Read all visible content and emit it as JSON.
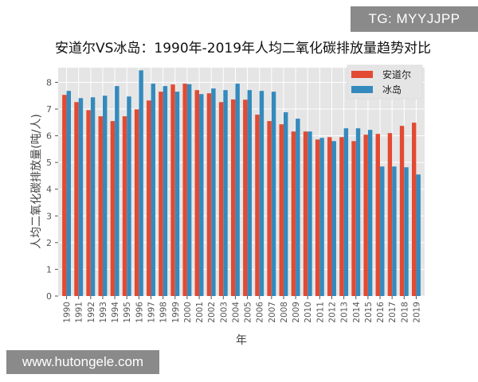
{
  "watermarks": {
    "top_right": "TG: MYYJJPP",
    "bottom_left": "www.hutongele.com"
  },
  "chart_data": {
    "type": "bar",
    "title": "安道尔VS冰岛：1990年-2019年人均二氧化碳排放量趋势对比",
    "xlabel": "年",
    "ylabel": "人均二氧化碳排放量(吨/人)",
    "ylim": [
      0,
      8.55
    ],
    "yticks": [
      0,
      1,
      2,
      3,
      4,
      5,
      6,
      7,
      8
    ],
    "grid": true,
    "legend": "top-right",
    "categories": [
      "1990",
      "1991",
      "1992",
      "1993",
      "1994",
      "1995",
      "1996",
      "1997",
      "1998",
      "1999",
      "2000",
      "2001",
      "2002",
      "2003",
      "2004",
      "2005",
      "2006",
      "2007",
      "2008",
      "2009",
      "2010",
      "2011",
      "2012",
      "2013",
      "2014",
      "2015",
      "2016",
      "2017",
      "2018",
      "2019"
    ],
    "series": [
      {
        "name": "安道尔",
        "color": "#e24a33",
        "values": [
          7.53,
          7.26,
          6.96,
          6.73,
          6.55,
          6.73,
          6.99,
          7.32,
          7.65,
          7.92,
          7.95,
          7.71,
          7.59,
          7.26,
          7.36,
          7.35,
          6.79,
          6.55,
          6.43,
          6.16,
          6.16,
          5.86,
          5.95,
          5.95,
          5.8,
          6.04,
          6.07,
          6.1,
          6.37,
          6.49
        ]
      },
      {
        "name": "冰岛",
        "color": "#348abd",
        "values": [
          7.68,
          7.41,
          7.44,
          7.5,
          7.86,
          7.47,
          8.45,
          7.95,
          7.86,
          7.65,
          7.93,
          7.56,
          7.77,
          7.71,
          7.95,
          7.71,
          7.68,
          7.65,
          6.88,
          6.64,
          6.16,
          5.92,
          5.8,
          6.28,
          6.28,
          6.22,
          4.85,
          4.85,
          4.82,
          4.55
        ]
      }
    ]
  }
}
